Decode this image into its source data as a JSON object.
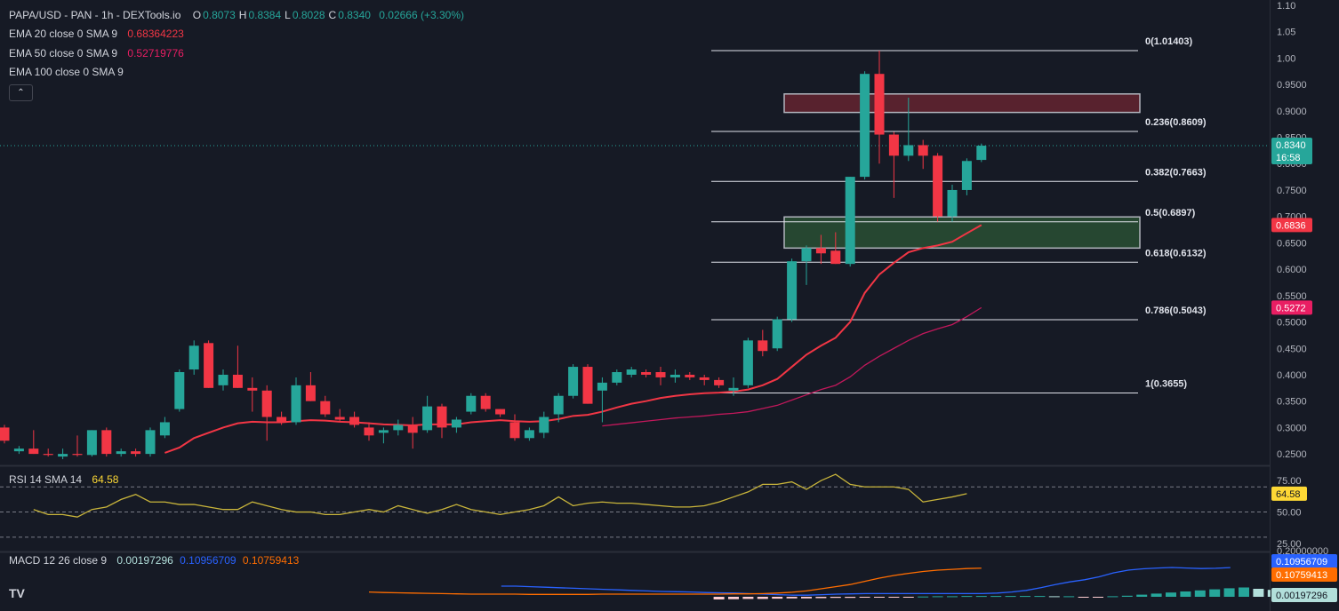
{
  "header": {
    "title": "PAPA/USD - PAN - 1h - DEXTools.io",
    "ohlc": [
      {
        "k": "O",
        "v": "0.8073"
      },
      {
        "k": "H",
        "v": "0.8384"
      },
      {
        "k": "L",
        "v": "0.8028"
      },
      {
        "k": "C",
        "v": "0.8340"
      }
    ],
    "change": "0.02666 (+3.30%)"
  },
  "indicators": [
    {
      "label": "EMA 20 close 0 SMA 9",
      "value": "0.68364223",
      "color": "#f23645"
    },
    {
      "label": "EMA 50 close 0 SMA 9",
      "value": "0.52719776",
      "color": "#e91e63"
    },
    {
      "label": "EMA 100 close 0 SMA 9",
      "value": "",
      "color": ""
    }
  ],
  "collapse_icon": "chevron-up-icon",
  "logo": "TV",
  "price_axis": {
    "labels": [
      "1.10",
      "1.05",
      "1.00",
      "0.9500",
      "0.9000",
      "0.8500",
      "0.8000",
      "0.7500",
      "0.7000",
      "0.6500",
      "0.6000",
      "0.5500",
      "0.5000",
      "0.4500",
      "0.4000",
      "0.3500",
      "0.3000",
      "0.2500"
    ],
    "last_price": {
      "value": "0.8340",
      "countdown": "16:58",
      "color": "#26a69a"
    },
    "ema20_tag": {
      "value": "0.6836",
      "color": "#f23645"
    },
    "ema50_tag": {
      "value": "0.5272",
      "color": "#e91e63"
    }
  },
  "fibonacci": [
    {
      "label": "0(1.01403)",
      "price": 1.01403
    },
    {
      "label": "0.236(0.8609)",
      "price": 0.8609
    },
    {
      "label": "0.382(0.7663)",
      "price": 0.7663
    },
    {
      "label": "0.5(0.6897)",
      "price": 0.6897
    },
    {
      "label": "0.618(0.6132)",
      "price": 0.6132
    },
    {
      "label": "0.786(0.5043)",
      "price": 0.5043
    },
    {
      "label": "1(0.3655)",
      "price": 0.3655
    }
  ],
  "zones": [
    {
      "name": "resistance-zone",
      "top": 0.932,
      "bottom": 0.897,
      "color": "#f23645"
    },
    {
      "name": "support-zone",
      "top": 0.699,
      "bottom": 0.64,
      "color": "#4caf50"
    }
  ],
  "rsi": {
    "label": "RSI 14 SMA 14",
    "value": "64.58",
    "axis": [
      "75.00",
      "50.00",
      "25.00"
    ],
    "last_tag": "64.58",
    "levels": [
      70,
      50,
      30
    ],
    "series": [
      52,
      48,
      48,
      46,
      52,
      54,
      60,
      64,
      58,
      58,
      56,
      56,
      54,
      52,
      52,
      58,
      55,
      52,
      50,
      50,
      48,
      48,
      50,
      52,
      50,
      55,
      52,
      49,
      52,
      56,
      52,
      50,
      48,
      50,
      52,
      55,
      62,
      55,
      57,
      58,
      57,
      57,
      56,
      55,
      54,
      54,
      55,
      58,
      62,
      66,
      72,
      72,
      74,
      68,
      75,
      80,
      72,
      70,
      70,
      70,
      68,
      58,
      60,
      62,
      64.58
    ]
  },
  "macd": {
    "label": "MACD 12 26 close 9",
    "values": [
      "0.00197296",
      "0.10956709",
      "0.10759413"
    ],
    "colors": [
      "#26a69a",
      "#2962ff",
      "#ff6d00"
    ],
    "axis_top": "0.20000000",
    "tags": [
      {
        "value": "0.10956709",
        "color": "#2962ff"
      },
      {
        "value": "0.10759413",
        "color": "#ff6d00"
      },
      {
        "value": "0.00197296",
        "color": "#b2dfdb"
      }
    ]
  },
  "chart_data": {
    "type": "candlestick",
    "price_range": [
      0.23,
      1.11
    ],
    "candles": [
      [
        0.3,
        0.305,
        0.27,
        0.275
      ],
      [
        0.255,
        0.265,
        0.25,
        0.26
      ],
      [
        0.26,
        0.295,
        0.25,
        0.25
      ],
      [
        0.25,
        0.26,
        0.245,
        0.248
      ],
      [
        0.245,
        0.26,
        0.24,
        0.25
      ],
      [
        0.25,
        0.285,
        0.245,
        0.248
      ],
      [
        0.248,
        0.295,
        0.245,
        0.295
      ],
      [
        0.295,
        0.3,
        0.245,
        0.25
      ],
      [
        0.25,
        0.26,
        0.245,
        0.255
      ],
      [
        0.255,
        0.26,
        0.245,
        0.25
      ],
      [
        0.25,
        0.3,
        0.245,
        0.295
      ],
      [
        0.285,
        0.32,
        0.28,
        0.31
      ],
      [
        0.335,
        0.41,
        0.33,
        0.405
      ],
      [
        0.41,
        0.465,
        0.4,
        0.455
      ],
      [
        0.46,
        0.465,
        0.375,
        0.375
      ],
      [
        0.38,
        0.41,
        0.37,
        0.4
      ],
      [
        0.4,
        0.455,
        0.375,
        0.375
      ],
      [
        0.375,
        0.395,
        0.33,
        0.37
      ],
      [
        0.37,
        0.38,
        0.275,
        0.32
      ],
      [
        0.32,
        0.33,
        0.305,
        0.31
      ],
      [
        0.31,
        0.395,
        0.305,
        0.38
      ],
      [
        0.38,
        0.405,
        0.35,
        0.35
      ],
      [
        0.35,
        0.36,
        0.32,
        0.325
      ],
      [
        0.32,
        0.335,
        0.31,
        0.315
      ],
      [
        0.32,
        0.33,
        0.3,
        0.305
      ],
      [
        0.3,
        0.31,
        0.275,
        0.285
      ],
      [
        0.29,
        0.3,
        0.27,
        0.295
      ],
      [
        0.295,
        0.315,
        0.285,
        0.305
      ],
      [
        0.305,
        0.32,
        0.26,
        0.29
      ],
      [
        0.295,
        0.36,
        0.29,
        0.34
      ],
      [
        0.34,
        0.345,
        0.28,
        0.3
      ],
      [
        0.3,
        0.32,
        0.29,
        0.315
      ],
      [
        0.33,
        0.365,
        0.325,
        0.36
      ],
      [
        0.36,
        0.365,
        0.33,
        0.335
      ],
      [
        0.335,
        0.335,
        0.32,
        0.325
      ],
      [
        0.31,
        0.325,
        0.275,
        0.28
      ],
      [
        0.28,
        0.3,
        0.275,
        0.295
      ],
      [
        0.29,
        0.33,
        0.28,
        0.32
      ],
      [
        0.325,
        0.365,
        0.31,
        0.36
      ],
      [
        0.36,
        0.42,
        0.355,
        0.415
      ],
      [
        0.415,
        0.42,
        0.345,
        0.345
      ],
      [
        0.37,
        0.395,
        0.31,
        0.385
      ],
      [
        0.385,
        0.41,
        0.38,
        0.405
      ],
      [
        0.4,
        0.415,
        0.395,
        0.41
      ],
      [
        0.405,
        0.41,
        0.395,
        0.4
      ],
      [
        0.405,
        0.415,
        0.38,
        0.395
      ],
      [
        0.395,
        0.41,
        0.385,
        0.4
      ],
      [
        0.4,
        0.405,
        0.39,
        0.395
      ],
      [
        0.395,
        0.4,
        0.38,
        0.39
      ],
      [
        0.39,
        0.395,
        0.375,
        0.38
      ],
      [
        0.37,
        0.395,
        0.36,
        0.375
      ],
      [
        0.38,
        0.47,
        0.375,
        0.465
      ],
      [
        0.465,
        0.485,
        0.435,
        0.445
      ],
      [
        0.45,
        0.51,
        0.445,
        0.505
      ],
      [
        0.505,
        0.62,
        0.5,
        0.615
      ],
      [
        0.615,
        0.645,
        0.57,
        0.64
      ],
      [
        0.64,
        0.665,
        0.61,
        0.63
      ],
      [
        0.635,
        0.67,
        0.61,
        0.61
      ],
      [
        0.61,
        0.775,
        0.605,
        0.775
      ],
      [
        0.775,
        0.975,
        0.77,
        0.97
      ],
      [
        0.97,
        1.014,
        0.8,
        0.855
      ],
      [
        0.855,
        0.86,
        0.735,
        0.815
      ],
      [
        0.815,
        0.925,
        0.805,
        0.835
      ],
      [
        0.835,
        0.845,
        0.79,
        0.815
      ],
      [
        0.815,
        0.82,
        0.69,
        0.7
      ],
      [
        0.7,
        0.76,
        0.69,
        0.75
      ],
      [
        0.75,
        0.81,
        0.74,
        0.805
      ],
      [
        0.807,
        0.838,
        0.803,
        0.834
      ]
    ],
    "candle_x": {
      "start": 5,
      "step": 16.4
    },
    "ema20": [
      null,
      null,
      null,
      null,
      null,
      null,
      null,
      null,
      null,
      null,
      null,
      0.252,
      0.262,
      0.28,
      0.29,
      0.3,
      0.308,
      0.311,
      0.31,
      0.31,
      0.312,
      0.314,
      0.313,
      0.311,
      0.31,
      0.308,
      0.306,
      0.305,
      0.304,
      0.306,
      0.306,
      0.306,
      0.31,
      0.312,
      0.314,
      0.312,
      0.311,
      0.312,
      0.316,
      0.322,
      0.324,
      0.33,
      0.338,
      0.345,
      0.35,
      0.356,
      0.36,
      0.363,
      0.365,
      0.366,
      0.368,
      0.372,
      0.38,
      0.392,
      0.415,
      0.438,
      0.455,
      0.47,
      0.5,
      0.555,
      0.59,
      0.612,
      0.632,
      0.64,
      0.645,
      0.652,
      0.668,
      0.6836
    ],
    "ema50": [
      null,
      null,
      null,
      null,
      null,
      null,
      null,
      null,
      null,
      null,
      null,
      null,
      null,
      null,
      null,
      null,
      null,
      null,
      null,
      null,
      null,
      null,
      null,
      null,
      null,
      null,
      null,
      null,
      null,
      null,
      null,
      null,
      null,
      null,
      null,
      null,
      null,
      null,
      null,
      null,
      null,
      0.303,
      0.306,
      0.309,
      0.312,
      0.315,
      0.318,
      0.32,
      0.322,
      0.325,
      0.327,
      0.33,
      0.336,
      0.342,
      0.352,
      0.362,
      0.372,
      0.38,
      0.396,
      0.418,
      0.435,
      0.45,
      0.465,
      0.478,
      0.487,
      0.495,
      0.51,
      0.5272
    ],
    "macd_line": [
      null,
      null,
      null,
      null,
      null,
      null,
      null,
      null,
      null,
      null,
      null,
      null,
      null,
      null,
      null,
      null,
      null,
      0.04,
      0.04,
      0.038,
      0.036,
      0.034,
      0.032,
      0.03,
      0.028,
      0.026,
      0.024,
      0.022,
      0.02,
      0.019,
      0.018,
      0.016,
      0.015,
      0.014,
      0.012,
      0.01,
      0.008,
      0.006,
      0.006,
      0.008,
      0.01,
      0.011,
      0.012,
      0.012,
      0.012,
      0.012,
      0.012,
      0.012,
      0.012,
      0.012,
      0.012,
      0.014,
      0.018,
      0.024,
      0.034,
      0.046,
      0.056,
      0.064,
      0.075,
      0.09,
      0.1,
      0.105,
      0.108,
      0.11,
      0.108,
      0.106,
      0.107,
      0.1096
    ],
    "signal_line": [
      null,
      null,
      null,
      null,
      null,
      null,
      null,
      null,
      null,
      null,
      null,
      null,
      null,
      null,
      null,
      null,
      null,
      null,
      null,
      null,
      null,
      null,
      null,
      null,
      null,
      0.018,
      0.016,
      0.015,
      0.014,
      0.013,
      0.012,
      0.011,
      0.01,
      0.01,
      0.01,
      0.01,
      0.009,
      0.009,
      0.009,
      0.009,
      0.009,
      0.01,
      0.01,
      0.01,
      0.01,
      0.01,
      0.01,
      0.01,
      0.01,
      0.01,
      0.011,
      0.011,
      0.012,
      0.014,
      0.017,
      0.022,
      0.03,
      0.038,
      0.046,
      0.058,
      0.07,
      0.08,
      0.088,
      0.095,
      0.1,
      0.103,
      0.106,
      0.1076
    ],
    "histogram": [
      null,
      null,
      null,
      null,
      null,
      null,
      null,
      null,
      null,
      null,
      null,
      null,
      null,
      null,
      null,
      null,
      null,
      null,
      null,
      null,
      null,
      null,
      null,
      null,
      -0.01,
      -0.009,
      -0.008,
      -0.008,
      -0.007,
      -0.006,
      -0.006,
      -0.005,
      -0.004,
      -0.004,
      -0.003,
      -0.002,
      -0.002,
      -0.001,
      0.001,
      0.002,
      0.002,
      0.003,
      0.003,
      0.003,
      0.003,
      0.003,
      0.003,
      0.002,
      0.002,
      -0.001,
      -0.002,
      0.002,
      0.004,
      0.008,
      0.012,
      0.016,
      0.02,
      0.024,
      0.028,
      0.032,
      0.035,
      0.03,
      0.026,
      0.02,
      0.014,
      0.008,
      0.004,
      0.002
    ]
  }
}
